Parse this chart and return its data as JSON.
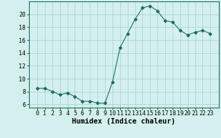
{
  "x": [
    0,
    1,
    2,
    3,
    4,
    5,
    6,
    7,
    8,
    9,
    10,
    11,
    12,
    13,
    14,
    15,
    16,
    17,
    18,
    19,
    20,
    21,
    22,
    23
  ],
  "y": [
    8.5,
    8.5,
    8.0,
    7.5,
    7.8,
    7.2,
    6.5,
    6.5,
    6.2,
    6.2,
    9.5,
    14.8,
    17.0,
    19.2,
    21.0,
    21.3,
    20.5,
    19.0,
    18.8,
    17.5,
    16.8,
    17.2,
    17.5,
    17.0
  ],
  "line_color": "#1a6b5a",
  "marker": "D",
  "marker_size": 2.5,
  "bg_color": "#d4f0ee",
  "grid_color": "#aed8d4",
  "xlabel": "Humidex (Indice chaleur)",
  "ylim": [
    5.5,
    22
  ],
  "yticks": [
    6,
    8,
    10,
    12,
    14,
    16,
    18,
    20
  ],
  "xticks": [
    0,
    1,
    2,
    3,
    4,
    5,
    6,
    7,
    8,
    9,
    10,
    11,
    12,
    13,
    14,
    15,
    16,
    17,
    18,
    19,
    20,
    21,
    22,
    23
  ],
  "tick_fontsize": 6,
  "label_fontsize": 7.5
}
